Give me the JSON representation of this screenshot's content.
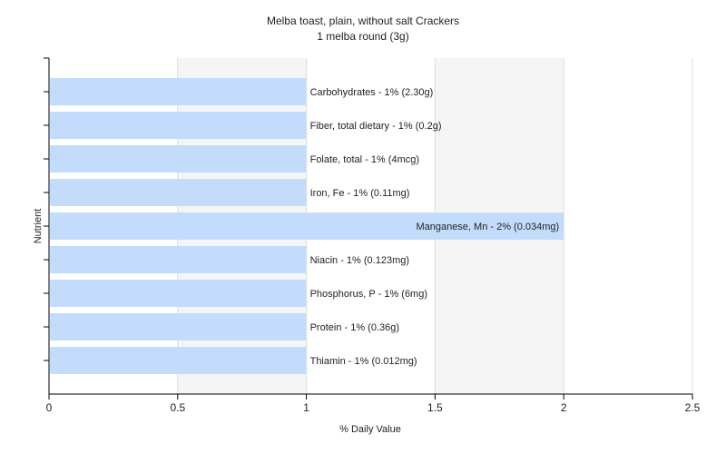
{
  "chart_data": {
    "type": "bar",
    "orientation": "horizontal",
    "title": "Melba toast, plain, without salt Crackers",
    "subtitle": "1 melba round (3g)",
    "xlabel": "% Daily Value",
    "ylabel": "Nutrient",
    "xlim": [
      0,
      2.5
    ],
    "xticks": [
      0,
      0.5,
      1,
      1.5,
      2,
      2.5
    ],
    "xtick_labels": [
      "0",
      "0.5",
      "1",
      "1.5",
      "2",
      "2.5"
    ],
    "grid": true,
    "legend": "none",
    "bar_color": "#c4dcfc",
    "categories": [
      "Carbohydrates",
      "Fiber, total dietary",
      "Folate, total",
      "Iron, Fe",
      "Manganese, Mn",
      "Niacin",
      "Phosphorus, P",
      "Protein",
      "Thiamin"
    ],
    "values": [
      1,
      1,
      1,
      1,
      2,
      1,
      1,
      1,
      1
    ],
    "labels": [
      "Carbohydrates - 1% (2.30g)",
      "Fiber, total dietary - 1% (0.2g)",
      "Folate, total - 1% (4mcg)",
      "Iron, Fe - 1% (0.11mg)",
      "Manganese, Mn - 2% (0.034mg)",
      "Niacin - 1% (0.123mg)",
      "Phosphorus, P - 1% (6mg)",
      "Protein - 1% (0.36g)",
      "Thiamin - 1% (0.012mg)"
    ]
  }
}
